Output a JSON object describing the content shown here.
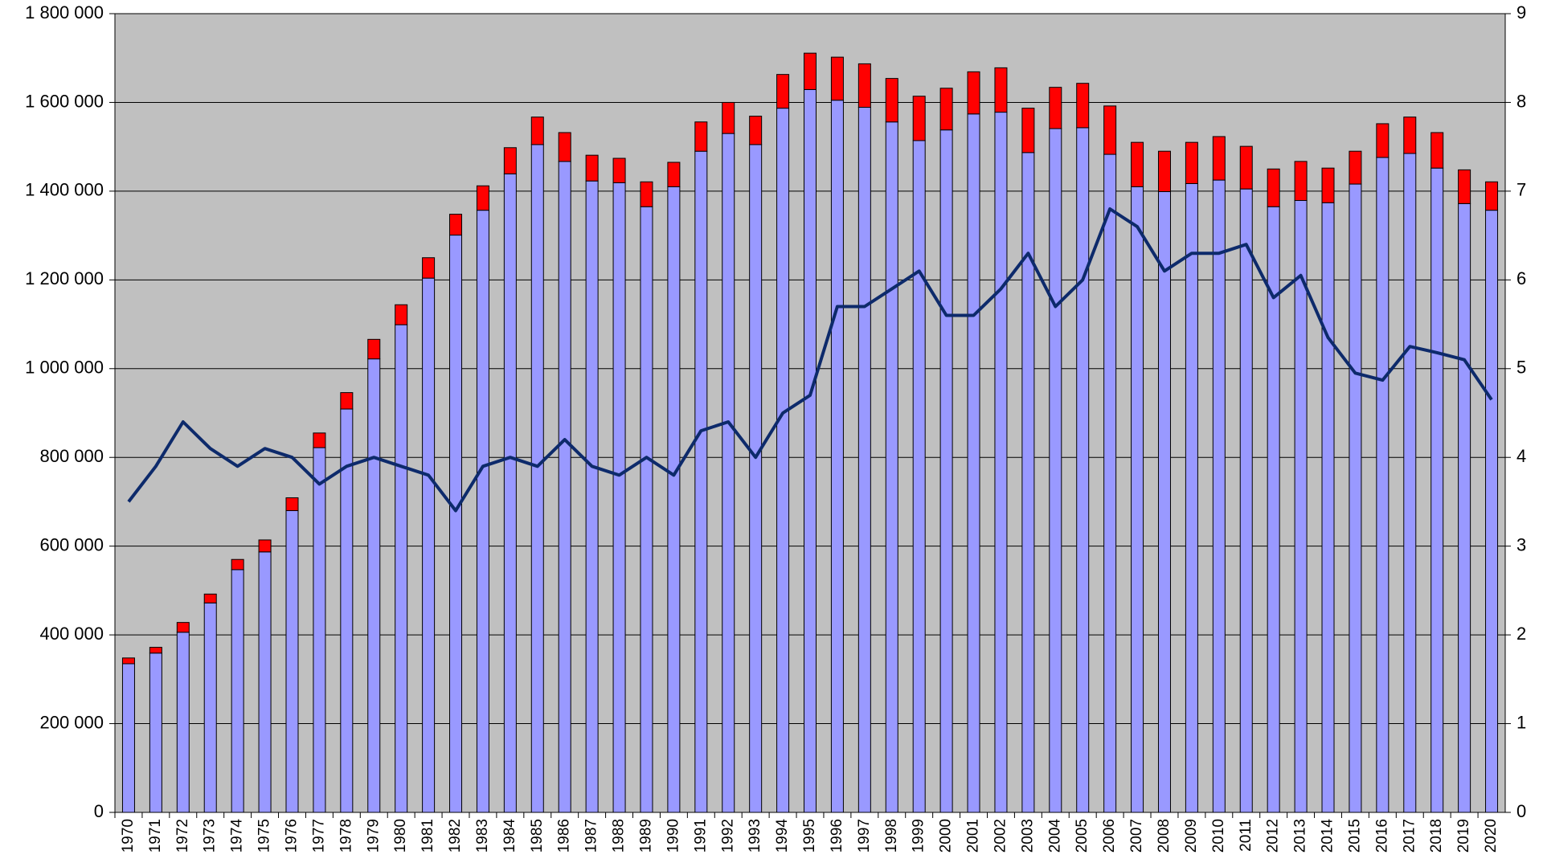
{
  "chart_data": {
    "type": "bar",
    "stacked": true,
    "categories": [
      "1970",
      "1971",
      "1972",
      "1973",
      "1974",
      "1975",
      "1976",
      "1977",
      "1978",
      "1979",
      "1980",
      "1981",
      "1982",
      "1983",
      "1984",
      "1985",
      "1986",
      "1987",
      "1988",
      "1989",
      "1990",
      "1991",
      "1992",
      "1993",
      "1994",
      "1995",
      "1996",
      "1997",
      "1998",
      "1999",
      "2000",
      "2001",
      "2002",
      "2003",
      "2004",
      "2005",
      "2006",
      "2007",
      "2008",
      "2009",
      "2010",
      "2011",
      "2012",
      "2013",
      "2014",
      "2015",
      "2016",
      "2017",
      "2018",
      "2019",
      "2020"
    ],
    "series": [
      {
        "type": "bar",
        "color": "#9999ff",
        "values": [
          335000,
          359000,
          406000,
          472000,
          547000,
          587000,
          680000,
          822000,
          909000,
          1022000,
          1099000,
          1204000,
          1301000,
          1357000,
          1439000,
          1505000,
          1467000,
          1423000,
          1419000,
          1365000,
          1410000,
          1490000,
          1530000,
          1505000,
          1587000,
          1629000,
          1605000,
          1589000,
          1556000,
          1514000,
          1538000,
          1574000,
          1578000,
          1487000,
          1541000,
          1543000,
          1483000,
          1410000,
          1399000,
          1417000,
          1425000,
          1405000,
          1365000,
          1379000,
          1374000,
          1416000,
          1476000,
          1485000,
          1452000,
          1372000,
          1357000
        ]
      },
      {
        "type": "bar",
        "color": "#ff0000",
        "values": [
          13000,
          13000,
          22000,
          20000,
          23000,
          27000,
          29000,
          33000,
          37000,
          44000,
          45000,
          46000,
          47000,
          55000,
          59000,
          62000,
          65000,
          58000,
          55000,
          56000,
          55000,
          66000,
          70000,
          64000,
          76000,
          82000,
          97000,
          98000,
          98000,
          100000,
          94000,
          95000,
          100000,
          100000,
          93000,
          100000,
          109000,
          100000,
          91000,
          93000,
          98000,
          96000,
          85000,
          88000,
          78000,
          74000,
          76000,
          82000,
          80000,
          76000,
          64000
        ]
      },
      {
        "type": "line",
        "axis": "y2",
        "color": "#0d2a6b",
        "values": [
          3.5,
          3.9,
          4.4,
          4.1,
          3.9,
          4.1,
          4.0,
          3.7,
          3.9,
          4.0,
          3.9,
          3.8,
          3.4,
          3.9,
          4.0,
          3.9,
          4.2,
          3.9,
          3.8,
          4.0,
          3.8,
          4.3,
          4.4,
          4.0,
          4.5,
          4.7,
          5.7,
          5.7,
          5.9,
          6.1,
          5.6,
          5.6,
          5.9,
          6.3,
          5.7,
          6.0,
          6.8,
          6.6,
          6.1,
          6.3,
          6.3,
          6.4,
          5.8,
          6.05,
          5.35,
          4.95,
          4.87,
          5.25,
          5.18,
          5.1,
          4.65
        ]
      }
    ],
    "ylim": [
      0,
      1800000
    ],
    "yticks": [
      0,
      {
        "value": 200000,
        "label": "200 000"
      },
      {
        "value": 400000,
        "label": "400 000"
      },
      {
        "value": 600000,
        "label": "600 000"
      },
      {
        "value": 800000,
        "label": "800 000"
      },
      {
        "value": 1000000,
        "label": "1 000 000"
      },
      {
        "value": 1200000,
        "label": "1 200 000"
      },
      {
        "value": 1400000,
        "label": "1 400 000"
      },
      {
        "value": 1600000,
        "label": "1 600 000"
      },
      {
        "value": 1800000,
        "label": "1 800 000"
      }
    ],
    "y2lim": [
      0,
      9
    ],
    "y2ticks": [
      0,
      1,
      2,
      3,
      4,
      5,
      6,
      7,
      8,
      9
    ],
    "grid": true,
    "plot_background": "#c0c0c0"
  }
}
